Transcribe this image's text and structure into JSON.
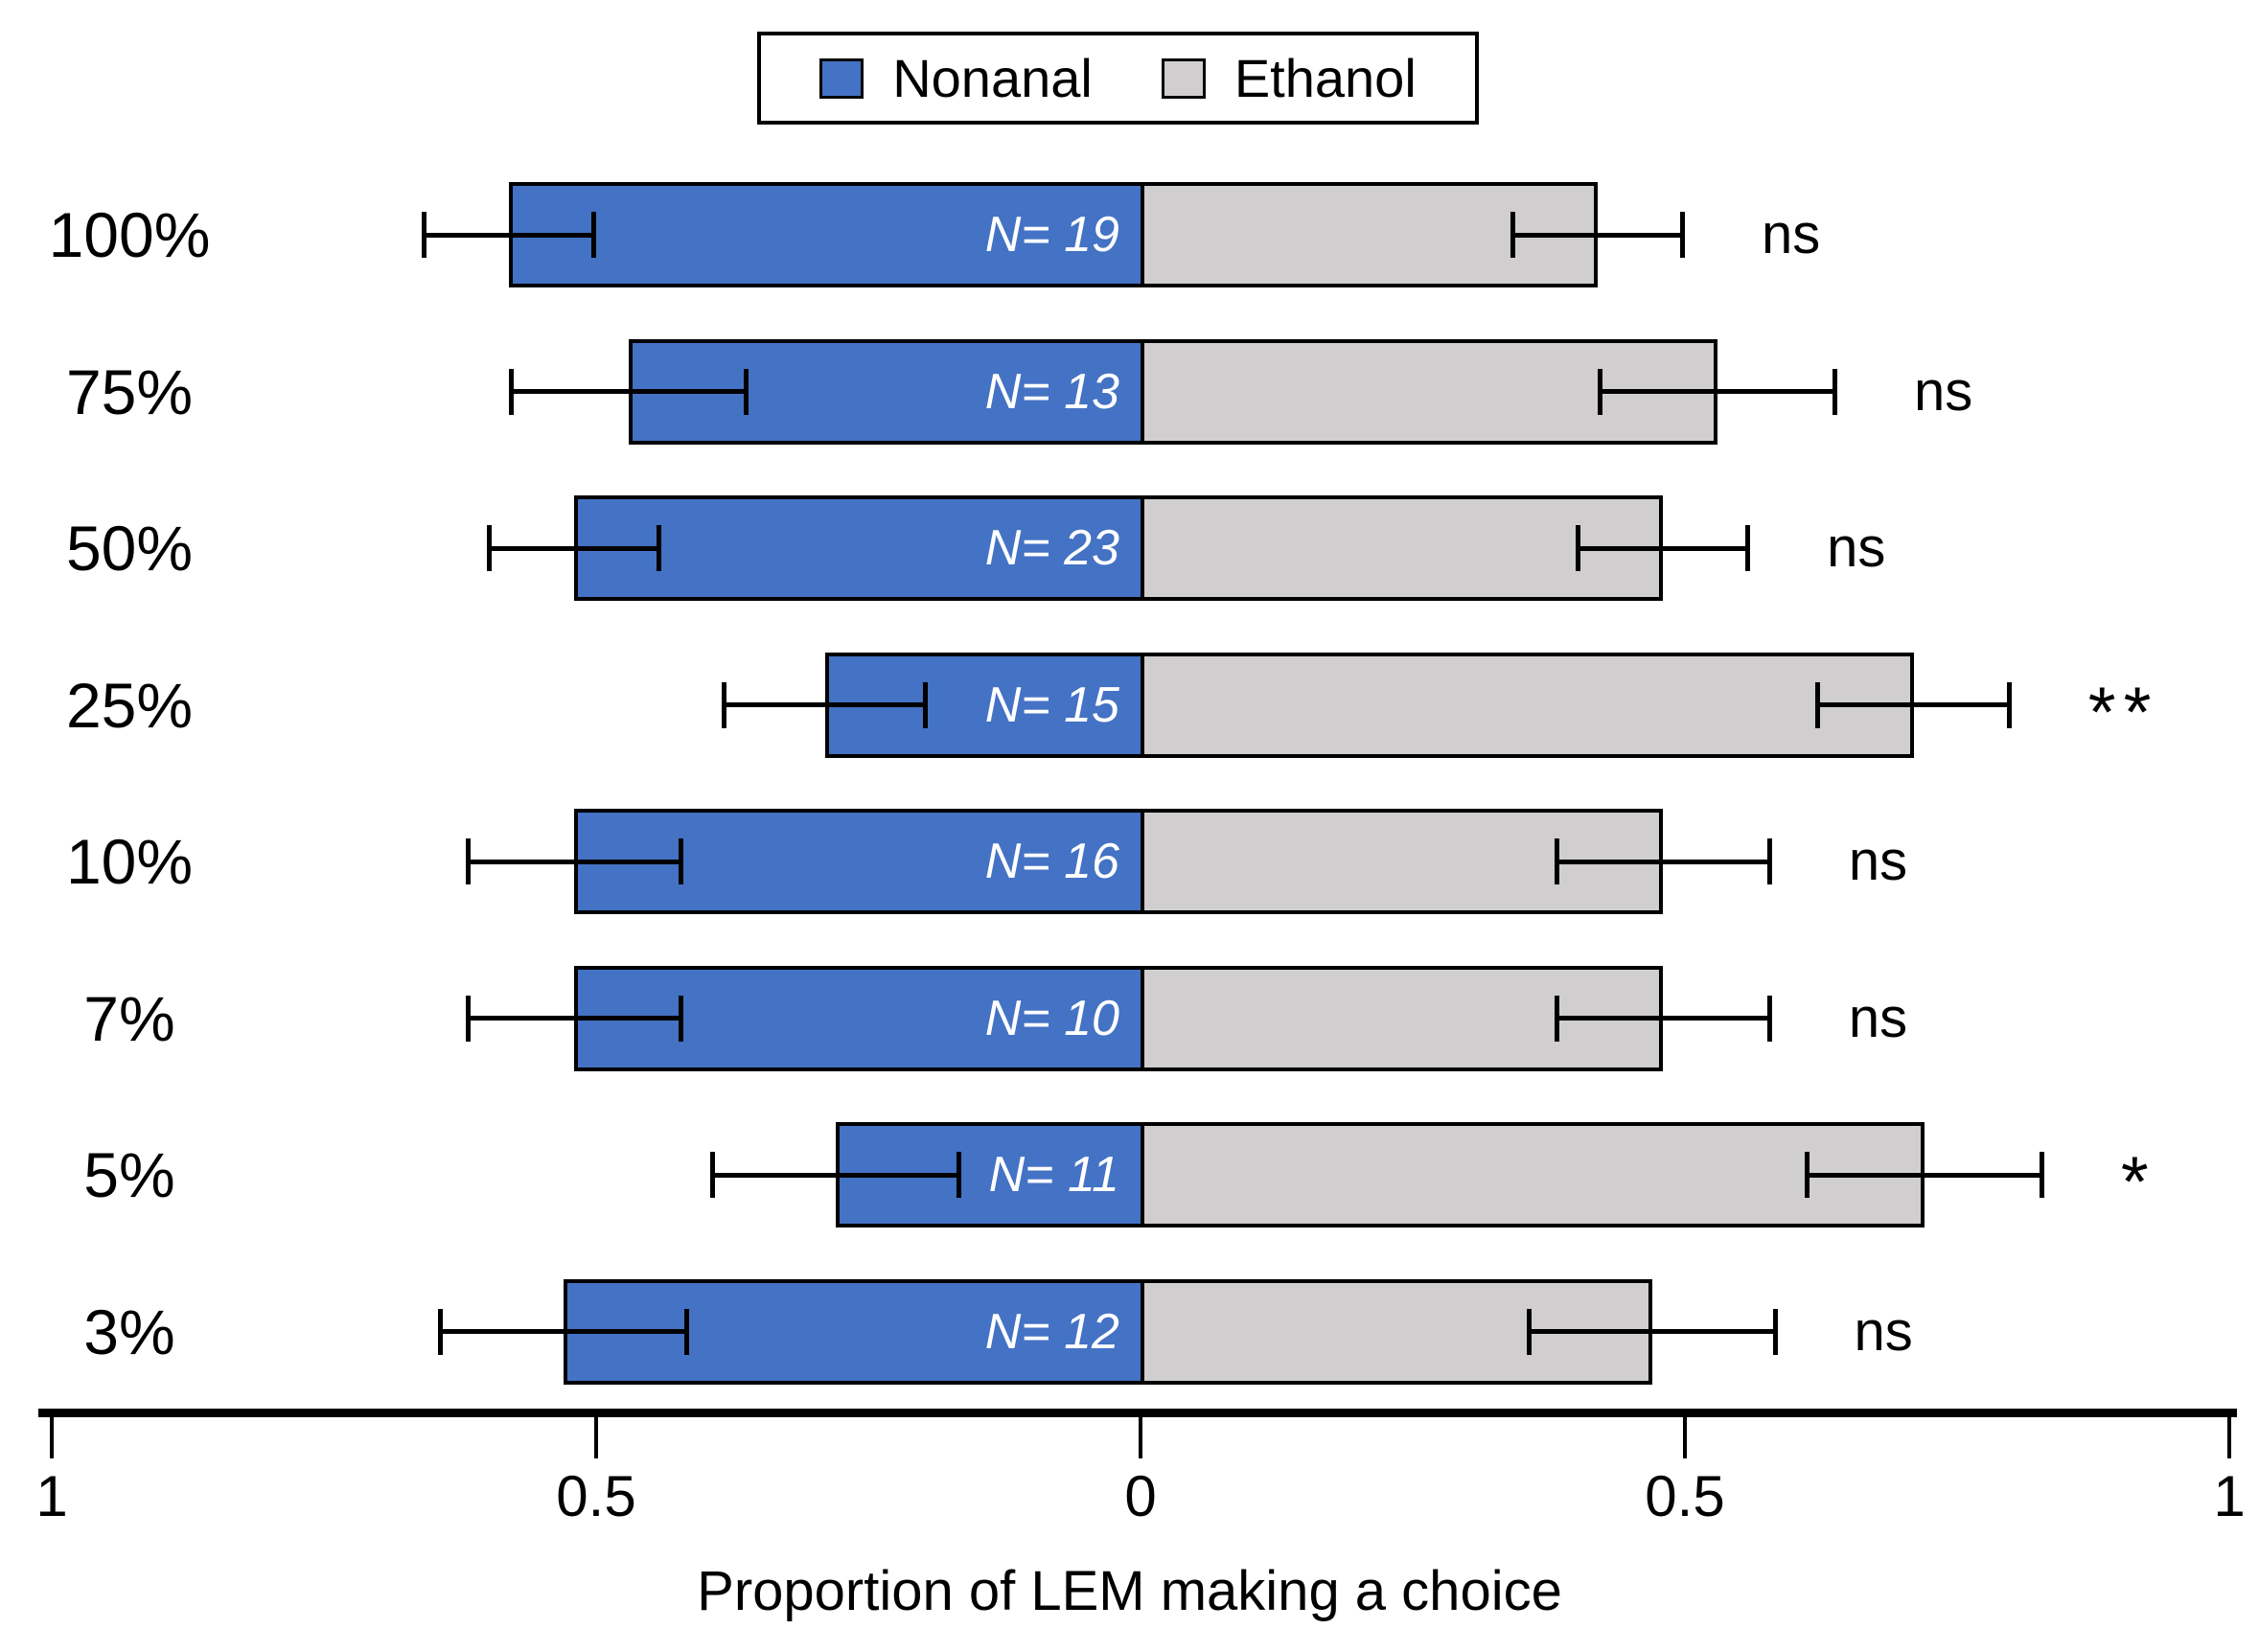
{
  "chart_data": {
    "type": "bar",
    "variant": "diverging-horizontal-stacked",
    "title": "",
    "xlabel": "Proportion of LEM making a choice",
    "ylabel": "",
    "categories": [
      "100%",
      "75%",
      "50%",
      "25%",
      "10%",
      "7%",
      "5%",
      "3%"
    ],
    "series": [
      {
        "name": "Nonanal",
        "color": "#4472C4",
        "side": "left",
        "values": [
          0.58,
          0.47,
          0.52,
          0.29,
          0.52,
          0.52,
          0.28,
          0.53
        ],
        "errors": [
          0.08,
          0.11,
          0.08,
          0.095,
          0.1,
          0.1,
          0.115,
          0.115
        ]
      },
      {
        "name": "Ethanol",
        "color": "#D0CECE",
        "side": "right",
        "values": [
          0.42,
          0.53,
          0.48,
          0.71,
          0.48,
          0.48,
          0.72,
          0.47
        ],
        "errors": [
          0.08,
          0.11,
          0.08,
          0.09,
          0.1,
          0.1,
          0.11,
          0.115
        ]
      }
    ],
    "n_labels": [
      "N= 19",
      "N= 13",
      "N= 23",
      "N= 15",
      "N= 16",
      "N= 10",
      "N= 11",
      "N= 12"
    ],
    "significance": [
      "ns",
      "ns",
      "ns",
      "**",
      "ns",
      "ns",
      "*",
      "ns"
    ],
    "x_ticks": [
      {
        "label": "1",
        "pos": -1
      },
      {
        "label": "0.5",
        "pos": -0.5
      },
      {
        "label": "0",
        "pos": 0
      },
      {
        "label": "0.5",
        "pos": 0.5
      },
      {
        "label": "1",
        "pos": 1
      }
    ],
    "xlim": [
      -1,
      1
    ],
    "grid": false,
    "legend_position": "top-center",
    "error_bar_color": "#000000",
    "bar_border_color": "#000000"
  }
}
